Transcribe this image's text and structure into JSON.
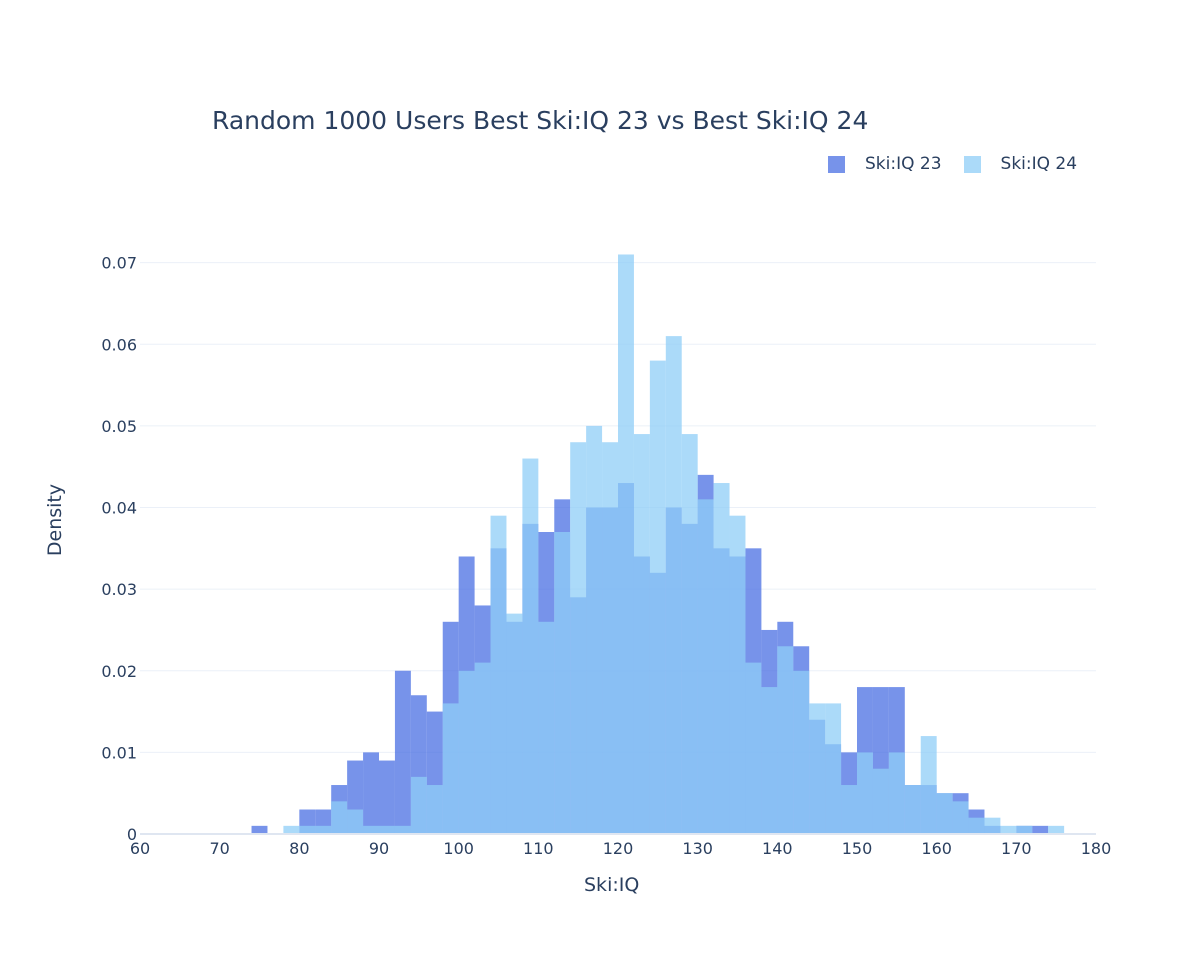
{
  "chart_data": {
    "type": "bar",
    "mode": "overlay-histogram",
    "title": "Random 1000 Users Best Ski:IQ 23 vs Best Ski:IQ 24",
    "xlabel": "Ski:IQ",
    "ylabel": "Density",
    "xlim": [
      60,
      180
    ],
    "ylim": [
      0,
      0.074
    ],
    "xticks": [
      60,
      70,
      80,
      90,
      100,
      110,
      120,
      130,
      140,
      150,
      160,
      170,
      180
    ],
    "xtick_labels": [
      "60",
      "70",
      "80",
      "90",
      "100",
      "110",
      "120",
      "130",
      "140",
      "150",
      "160",
      "170",
      "180"
    ],
    "yticks": [
      0,
      0.01,
      0.02,
      0.03,
      0.04,
      0.05,
      0.06,
      0.07
    ],
    "ytick_labels": [
      "0",
      "0.01",
      "0.02",
      "0.03",
      "0.04",
      "0.05",
      "0.06",
      "0.07"
    ],
    "grid": true,
    "legend_position": "top-right",
    "bin_width": 2,
    "series": [
      {
        "name": "Ski:IQ 23",
        "color": "#4a6fe3",
        "opacity": 0.75,
        "bins": [
          {
            "x0": 74,
            "y": 0.001
          },
          {
            "x0": 80,
            "y": 0.003
          },
          {
            "x0": 82,
            "y": 0.003
          },
          {
            "x0": 84,
            "y": 0.006
          },
          {
            "x0": 86,
            "y": 0.009
          },
          {
            "x0": 88,
            "y": 0.01
          },
          {
            "x0": 90,
            "y": 0.009
          },
          {
            "x0": 92,
            "y": 0.02
          },
          {
            "x0": 94,
            "y": 0.017
          },
          {
            "x0": 96,
            "y": 0.015
          },
          {
            "x0": 98,
            "y": 0.026
          },
          {
            "x0": 100,
            "y": 0.034
          },
          {
            "x0": 102,
            "y": 0.028
          },
          {
            "x0": 104,
            "y": 0.035
          },
          {
            "x0": 106,
            "y": 0.026
          },
          {
            "x0": 108,
            "y": 0.038
          },
          {
            "x0": 110,
            "y": 0.037
          },
          {
            "x0": 112,
            "y": 0.041
          },
          {
            "x0": 114,
            "y": 0.029
          },
          {
            "x0": 116,
            "y": 0.04
          },
          {
            "x0": 118,
            "y": 0.04
          },
          {
            "x0": 120,
            "y": 0.043
          },
          {
            "x0": 122,
            "y": 0.034
          },
          {
            "x0": 124,
            "y": 0.032
          },
          {
            "x0": 126,
            "y": 0.04
          },
          {
            "x0": 128,
            "y": 0.038
          },
          {
            "x0": 130,
            "y": 0.044
          },
          {
            "x0": 132,
            "y": 0.035
          },
          {
            "x0": 134,
            "y": 0.034
          },
          {
            "x0": 136,
            "y": 0.035
          },
          {
            "x0": 138,
            "y": 0.025
          },
          {
            "x0": 140,
            "y": 0.026
          },
          {
            "x0": 142,
            "y": 0.023
          },
          {
            "x0": 144,
            "y": 0.014
          },
          {
            "x0": 146,
            "y": 0.011
          },
          {
            "x0": 148,
            "y": 0.01
          },
          {
            "x0": 150,
            "y": 0.018
          },
          {
            "x0": 152,
            "y": 0.018
          },
          {
            "x0": 154,
            "y": 0.018
          },
          {
            "x0": 156,
            "y": 0.006
          },
          {
            "x0": 158,
            "y": 0.006
          },
          {
            "x0": 160,
            "y": 0.005
          },
          {
            "x0": 162,
            "y": 0.005
          },
          {
            "x0": 164,
            "y": 0.003
          },
          {
            "x0": 166,
            "y": 0.001
          },
          {
            "x0": 170,
            "y": 0.001
          },
          {
            "x0": 172,
            "y": 0.001
          }
        ]
      },
      {
        "name": "Ski:IQ 24",
        "color": "#8fcdf7",
        "opacity": 0.75,
        "bins": [
          {
            "x0": 78,
            "y": 0.001
          },
          {
            "x0": 80,
            "y": 0.001
          },
          {
            "x0": 82,
            "y": 0.001
          },
          {
            "x0": 84,
            "y": 0.004
          },
          {
            "x0": 86,
            "y": 0.003
          },
          {
            "x0": 88,
            "y": 0.001
          },
          {
            "x0": 90,
            "y": 0.001
          },
          {
            "x0": 92,
            "y": 0.001
          },
          {
            "x0": 94,
            "y": 0.007
          },
          {
            "x0": 96,
            "y": 0.006
          },
          {
            "x0": 98,
            "y": 0.016
          },
          {
            "x0": 100,
            "y": 0.02
          },
          {
            "x0": 102,
            "y": 0.021
          },
          {
            "x0": 104,
            "y": 0.039
          },
          {
            "x0": 106,
            "y": 0.027
          },
          {
            "x0": 108,
            "y": 0.046
          },
          {
            "x0": 110,
            "y": 0.026
          },
          {
            "x0": 112,
            "y": 0.037
          },
          {
            "x0": 114,
            "y": 0.048
          },
          {
            "x0": 116,
            "y": 0.05
          },
          {
            "x0": 118,
            "y": 0.048
          },
          {
            "x0": 120,
            "y": 0.071
          },
          {
            "x0": 122,
            "y": 0.049
          },
          {
            "x0": 124,
            "y": 0.058
          },
          {
            "x0": 126,
            "y": 0.061
          },
          {
            "x0": 128,
            "y": 0.049
          },
          {
            "x0": 130,
            "y": 0.041
          },
          {
            "x0": 132,
            "y": 0.043
          },
          {
            "x0": 134,
            "y": 0.039
          },
          {
            "x0": 136,
            "y": 0.021
          },
          {
            "x0": 138,
            "y": 0.018
          },
          {
            "x0": 140,
            "y": 0.023
          },
          {
            "x0": 142,
            "y": 0.02
          },
          {
            "x0": 144,
            "y": 0.016
          },
          {
            "x0": 146,
            "y": 0.016
          },
          {
            "x0": 148,
            "y": 0.006
          },
          {
            "x0": 150,
            "y": 0.01
          },
          {
            "x0": 152,
            "y": 0.008
          },
          {
            "x0": 154,
            "y": 0.01
          },
          {
            "x0": 156,
            "y": 0.006
          },
          {
            "x0": 158,
            "y": 0.012
          },
          {
            "x0": 160,
            "y": 0.005
          },
          {
            "x0": 162,
            "y": 0.004
          },
          {
            "x0": 164,
            "y": 0.002
          },
          {
            "x0": 166,
            "y": 0.002
          },
          {
            "x0": 168,
            "y": 0.001
          },
          {
            "x0": 170,
            "y": 0.001
          },
          {
            "x0": 174,
            "y": 0.001
          }
        ]
      }
    ]
  }
}
